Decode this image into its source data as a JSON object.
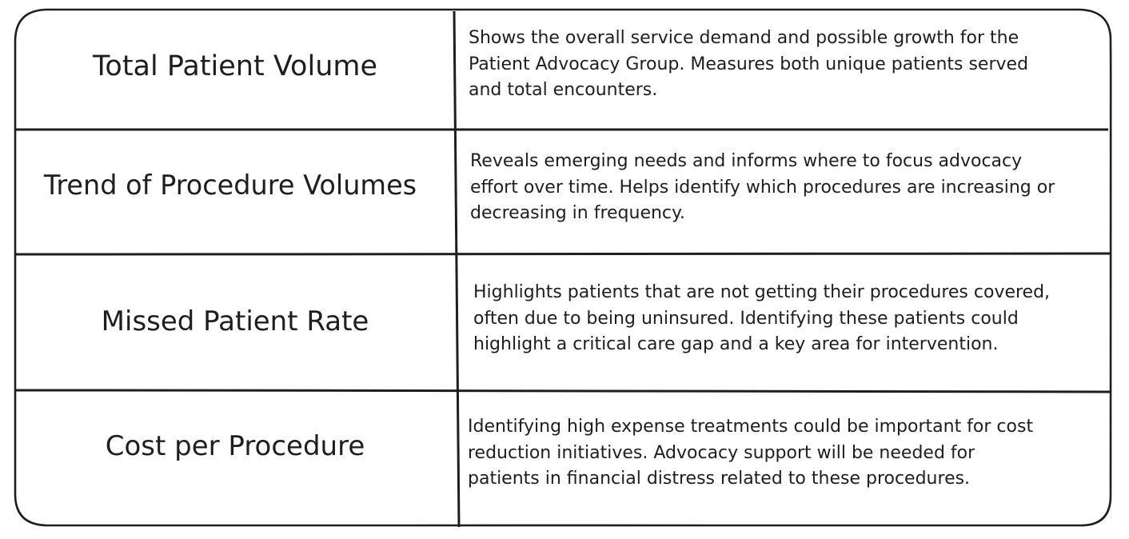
{
  "table": {
    "rows": [
      {
        "metric": "Total Patient Volume",
        "description": "Shows the overall service demand and possible growth for the\nPatient Advocacy Group. Measures both unique patients served\nand total encounters."
      },
      {
        "metric": "Trend of Procedure Volumes",
        "description": "Reveals emerging needs and informs where to focus advocacy\neffort over time. Helps identify which procedures are increasing or\ndecreasing in frequency."
      },
      {
        "metric": "Missed Patient Rate",
        "description": "Highlights patients that are not getting their procedures covered,\noften due to being uninsured. Identifying these patients could\nhighlight a critical care gap and a key area for intervention."
      },
      {
        "metric": "Cost per Procedure",
        "description": "Identifying high expense treatments could be important for cost\nreduction initiatives. Advocacy support will be needed for\npatients in financial distress related to these procedures."
      }
    ]
  },
  "colors": {
    "stroke": "#1e1e1e",
    "background": "#ffffff"
  }
}
